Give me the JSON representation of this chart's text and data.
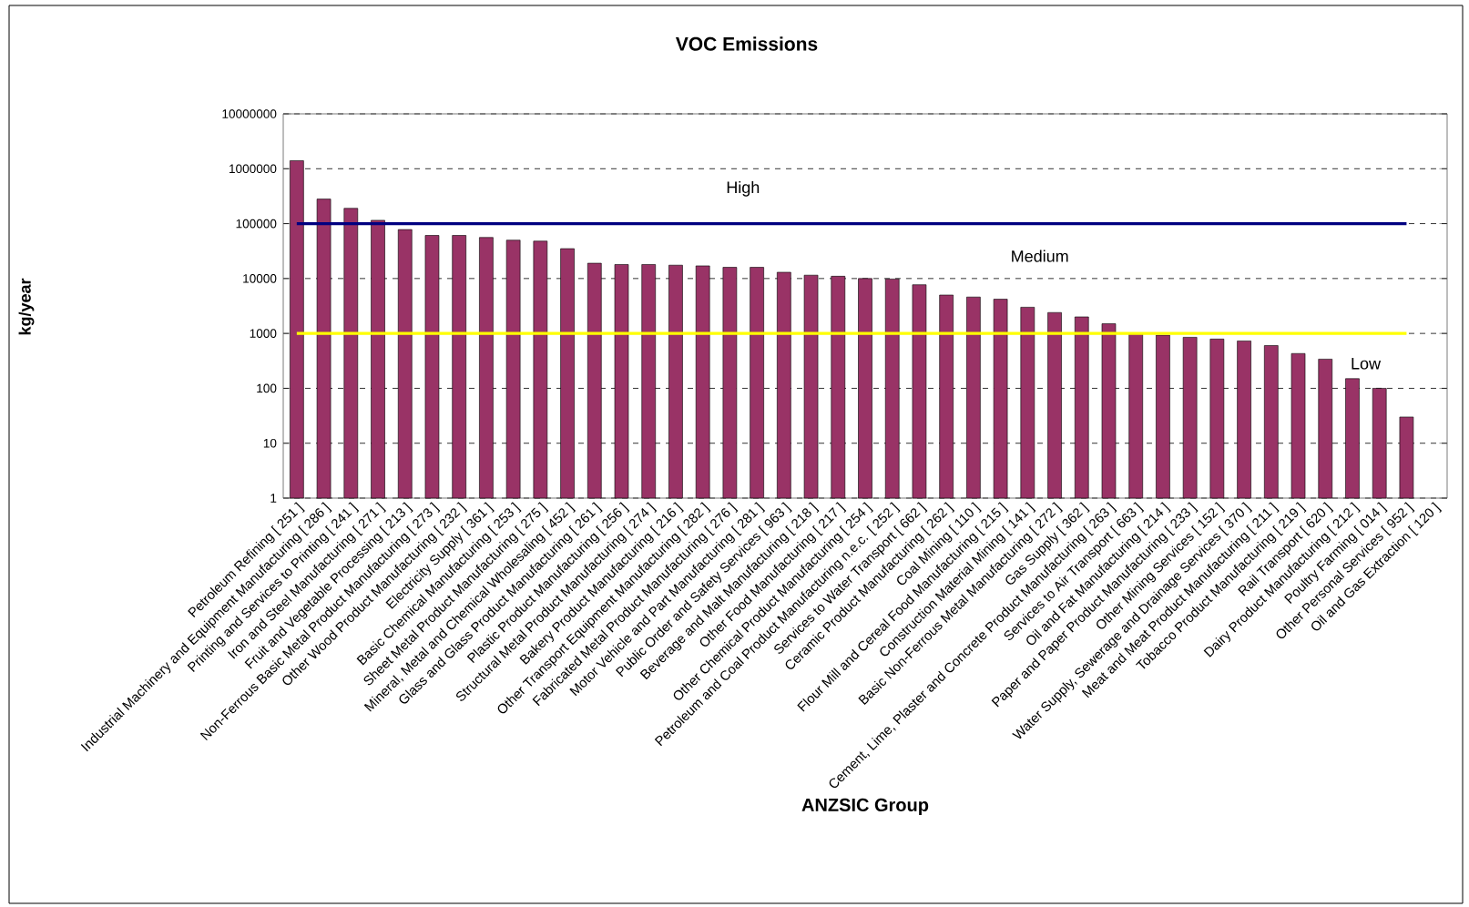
{
  "chart_data": {
    "type": "bar",
    "title": "VOC Emissions",
    "xlabel": "ANZSIC Group",
    "ylabel": "kg/year",
    "log": true,
    "grid": "y",
    "color": "#993366",
    "categories": [
      "Petroleum Refining [ 251 ]",
      "Industrial Machinery and Equipment Manufacturing [ 286 ]",
      "Printing and Services to Printing [ 241 ]",
      "Iron and Steel Manufacturing [ 271 ]",
      "Fruit and Vegetable Processing [ 213 ]",
      "Non-Ferrous Basic Metal Product Manufacturing [ 273 ]",
      "Other Wood Product Manufacturing [ 232 ]",
      "Electricity Supply [ 361 ]",
      "Basic Chemical Manufacturing [ 253 ]",
      "Sheet Metal Product Manufacturing [ 275 ]",
      "Mineral, Metal and Chemical Wholesaling [ 452 ]",
      "Glass and Glass Product Manufacturing [ 261 ]",
      "Plastic Product Manufacturing [ 256 ]",
      "Structural Metal Product Manufacturing [ 274 ]",
      "Bakery Product Manufacturing [ 216 ]",
      "Other Transport Equipment Manufacturing [ 282 ]",
      "Fabricated Metal Product Manufacturing [ 276 ]",
      "Motor Vehicle and Part Manufacturing [ 281 ]",
      "Public Order and Safety Services [ 963 ]",
      "Beverage and Malt Manufacturing [ 218 ]",
      "Other Food Manufacturing [ 217 ]",
      "Other Chemical Product Manufacturing [ 254 ]",
      "Petroleum and Coal Product Manufacturing n.e.c. [ 252 ]",
      "Services to Water Transport [ 662 ]",
      "Ceramic Product Manufacturing [ 262 ]",
      "Coal Mining [ 110 ]",
      "Flour Mill and Cereal Food Manufacturing [ 215 ]",
      "Construction Material Mining [ 141 ]",
      "Basic Non-Ferrous Metal Manufacturing [ 272 ]",
      "Gas Supply [ 362 ]",
      "Cement, Lime, Plaster and Concrete Product Manufacturing [ 263 ]",
      "Services to Air Transport [ 663 ]",
      "Oil and Fat Manufacturing [ 214 ]",
      "Paper and Paper Product Manufacturing [ 233 ]",
      "Other Mining Services [ 152 ]",
      "Water Supply, Sewerage and Drainage Services [ 370 ]",
      "Meat and Meat Product Manufacturing [ 211 ]",
      "Tobacco Product Manufacturing [ 219 ]",
      "Rail Transport [ 620 ]",
      "Dairy Product Manufacturing [ 212 ]",
      "Poultry Farming [ 014 ]",
      "Other Personal Services [ 952 ]",
      "Oil and Gas Extraction [ 120 ]"
    ],
    "values": [
      1400000,
      280000,
      190000,
      115000,
      78000,
      61000,
      61000,
      56000,
      50000,
      48000,
      35000,
      19000,
      18000,
      18000,
      17500,
      17000,
      16000,
      16000,
      13000,
      11500,
      11000,
      10000,
      9800,
      7700,
      5000,
      4600,
      4200,
      3000,
      2400,
      2000,
      1500,
      1000,
      930,
      850,
      790,
      730,
      600,
      430,
      340,
      150,
      100,
      30,
      null
    ],
    "ylim": [
      1,
      10000000
    ],
    "yticks": [
      1,
      10,
      100,
      1000,
      10000,
      100000,
      1000000,
      10000000
    ],
    "ref_lines": [
      {
        "axis": "y",
        "value": 100000,
        "color": "#000080"
      },
      {
        "axis": "y",
        "value": 1000,
        "color": "#ffff00"
      }
    ],
    "annotations": [
      "High",
      "Medium",
      "Low"
    ]
  }
}
